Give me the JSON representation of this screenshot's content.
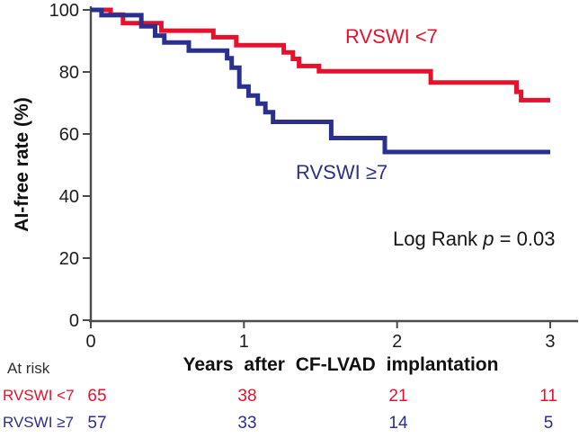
{
  "figure": {
    "log_rank": {
      "prefix": "Log Rank ",
      "p_symbol": "p",
      "suffix": " = 0.03"
    }
  },
  "chart_data": {
    "type": "line",
    "subtype": "kaplan-meier-step",
    "title": "",
    "xlabel": "Years after CF-LVAD implantation",
    "ylabel": "AI-free rate (%)",
    "xlim": [
      0,
      3.18
    ],
    "ylim": [
      0,
      100
    ],
    "x_ticks": [
      0,
      1,
      2,
      3
    ],
    "y_ticks": [
      0,
      20,
      40,
      60,
      80,
      100
    ],
    "grid": false,
    "legend_position": "on-plot",
    "annotation_text": "Log Rank p = 0.03",
    "series": [
      {
        "name": "RVSWI <7",
        "color": "#e8112d",
        "steps": [
          [
            0,
            100
          ],
          [
            0.13,
            98.5
          ],
          [
            0.21,
            95.7
          ],
          [
            0.46,
            93.3
          ],
          [
            0.8,
            91.2
          ],
          [
            0.95,
            88.6
          ],
          [
            1.26,
            86.3
          ],
          [
            1.32,
            84.2
          ],
          [
            1.36,
            81.9
          ],
          [
            1.49,
            80.2
          ],
          [
            2.22,
            76.6
          ],
          [
            2.78,
            73.6
          ],
          [
            2.81,
            70.9
          ],
          [
            3.0,
            70.9
          ]
        ]
      },
      {
        "name": "RVSWI ≥7",
        "color": "#2b2f8e",
        "steps": [
          [
            0,
            100
          ],
          [
            0.07,
            98.3
          ],
          [
            0.33,
            94.7
          ],
          [
            0.42,
            91.7
          ],
          [
            0.48,
            89.5
          ],
          [
            0.64,
            86.9
          ],
          [
            0.89,
            84.4
          ],
          [
            0.92,
            81.4
          ],
          [
            0.97,
            75.3
          ],
          [
            1.03,
            72.4
          ],
          [
            1.09,
            69.8
          ],
          [
            1.14,
            67
          ],
          [
            1.19,
            63.9
          ],
          [
            1.57,
            58.7
          ],
          [
            1.92,
            54.2
          ],
          [
            3.0,
            54.2
          ]
        ]
      }
    ],
    "at_risk_table": {
      "header": "At risk",
      "time_points": [
        0,
        1,
        2,
        3
      ],
      "rows": [
        {
          "label": "RVSWI <7",
          "color": "#e8112d",
          "counts": [
            65,
            38,
            21,
            11
          ]
        },
        {
          "label": "RVSWI ≥7",
          "color": "#2b2f8e",
          "counts": [
            57,
            33,
            14,
            5
          ]
        }
      ]
    }
  }
}
